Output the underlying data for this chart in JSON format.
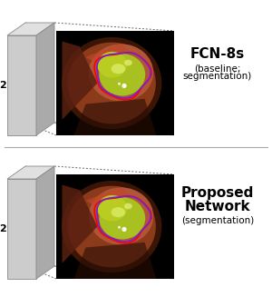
{
  "bg_color": "#ffffff",
  "panel1_label": "FCN-8s",
  "panel1_sublabel1": "(baseline;",
  "panel1_sublabel2": "segmentation)",
  "panel2_label1": "Proposed",
  "panel2_label2": "Network",
  "panel2_sublabel": "(segmentation)",
  "frame_number": "2",
  "label_fontsize": 11,
  "sublabel_fontsize": 7.5,
  "frame_label_fontsize": 8,
  "card_face_color": "#cccccc",
  "card_top_color": "#e0e0e0",
  "card_right_color": "#aaaaaa",
  "card_edge_color": "#888888",
  "dotted_line_color": "#666666",
  "separator_color": "#aaaaaa"
}
